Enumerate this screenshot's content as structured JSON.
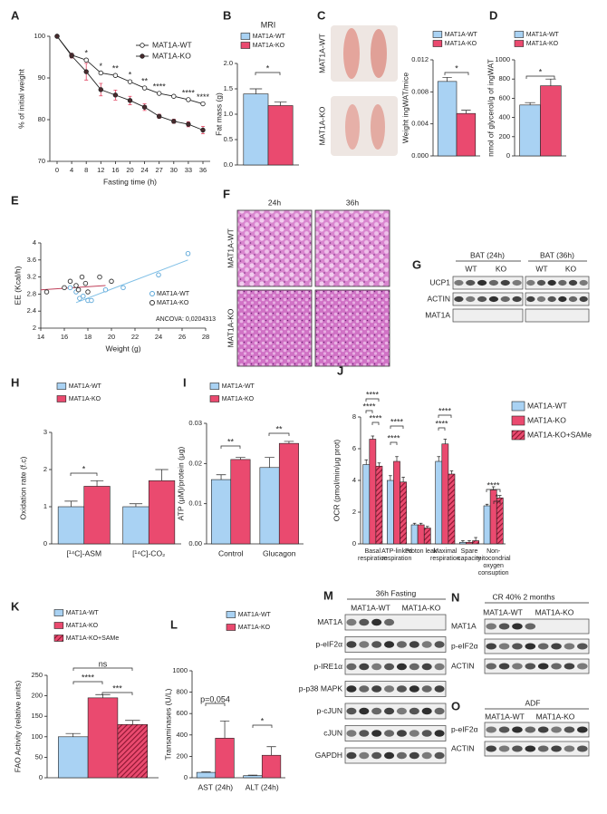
{
  "chart_data": [
    {
      "panel": "A",
      "type": "line",
      "categories": [
        "0",
        "4",
        "8",
        "12",
        "16",
        "20",
        "24",
        "27",
        "30",
        "33",
        "36"
      ],
      "series": [
        {
          "name": "MAT1A-WT",
          "color": "#ffffff",
          "values": [
            100,
            95.5,
            94.3,
            91.2,
            90.6,
            89.1,
            87.6,
            86.3,
            85.6,
            84.8,
            83.8
          ]
        },
        {
          "name": "MAT1A-KO",
          "color": "#4a2b2e",
          "error_color": "#e0405f",
          "values": [
            100,
            95.3,
            91.5,
            87.2,
            85.9,
            84.6,
            83.0,
            80.8,
            79.6,
            78.9,
            77.5
          ],
          "errors": [
            0.3,
            0.5,
            2.0,
            1.5,
            1.2,
            1.0,
            0.8,
            0.5,
            0.5,
            0.6,
            0.9
          ]
        }
      ],
      "ylim": [
        70,
        100
      ],
      "yticks": [
        70,
        80,
        90,
        100
      ],
      "ylabel": "% of initial weight",
      "xlabel": "Fasting time (h)",
      "annotations": [
        "*",
        "*",
        "**",
        "*",
        "**",
        "****",
        "****",
        "****"
      ]
    },
    {
      "panel": "B",
      "type": "bar",
      "title": "MRI",
      "series": [
        {
          "name": "MAT1A-WT",
          "color": "#a9d2f3",
          "values": [
            1.4
          ],
          "errors": [
            0.1
          ]
        },
        {
          "name": "MAT1A-KO",
          "color": "#ea4a6f",
          "values": [
            1.17
          ],
          "errors": [
            0.07
          ]
        }
      ],
      "ylim": [
        0,
        2
      ],
      "yticks": [
        {
          "value": 0,
          "label": "0.0"
        },
        0.5,
        {
          "value": 1,
          "label": "1.0"
        },
        1.5,
        {
          "value": 2,
          "label": "2.0"
        }
      ],
      "ylabel": "Fat mass (g)",
      "annotations": [
        "*"
      ]
    },
    {
      "panel": "C",
      "type": "bar",
      "image_labels": [
        "MAT1A-WT",
        "MAT1A-KO"
      ],
      "series": [
        {
          "name": "MAT1A-WT",
          "color": "#a9d2f3",
          "values": [
            0.0093
          ],
          "errors": [
            0.0005
          ]
        },
        {
          "name": "MAT1A-KO",
          "color": "#ea4a6f",
          "values": [
            0.0053
          ],
          "errors": [
            0.0004
          ]
        }
      ],
      "ylim": [
        0,
        0.012
      ],
      "yticks": [
        {
          "value": 0,
          "label": "0.000"
        },
        0.004,
        0.008,
        0.012
      ],
      "ylabel": "Weight  ingWAT/mice",
      "annotations": [
        "*"
      ]
    },
    {
      "panel": "D",
      "type": "bar",
      "series": [
        {
          "name": "MAT1A-WT",
          "color": "#a9d2f3",
          "values": [
            530
          ],
          "errors": [
            25
          ]
        },
        {
          "name": "MAT1A-KO",
          "color": "#ea4a6f",
          "values": [
            730
          ],
          "errors": [
            70
          ]
        }
      ],
      "ylim": [
        0,
        1000
      ],
      "yticks": [
        0,
        200,
        400,
        600,
        800,
        1000
      ],
      "ylabel": "nmol of glycerol/g of ingWAT",
      "annotations": [
        "*"
      ]
    },
    {
      "panel": "E",
      "type": "scatter",
      "series": [
        {
          "name": "MAT1A-WT",
          "color": "#5aa6d8",
          "x": [
            16.5,
            17,
            17.3,
            17.6,
            18,
            18.3,
            19.5,
            21,
            24,
            26.5
          ],
          "values": [
            2.95,
            2.85,
            2.7,
            2.75,
            2.65,
            2.65,
            2.9,
            2.95,
            3.25,
            3.75
          ]
        },
        {
          "name": "MAT1A-KO",
          "color": "#333333",
          "x": [
            14.5,
            16,
            16.5,
            17,
            17.5,
            17.8,
            18,
            19,
            20,
            17.2
          ],
          "values": [
            2.85,
            2.95,
            3.1,
            3.0,
            3.2,
            3.05,
            2.85,
            3.2,
            3.1,
            2.9
          ]
        }
      ],
      "trend_lines": [
        {
          "color": "#7fbfe6",
          "x": [
            17,
            26.5
          ],
          "values": [
            2.6,
            3.6
          ]
        },
        {
          "color": "#c0405a",
          "x": [
            14,
            19.5
          ],
          "values": [
            2.9,
            3.0
          ]
        }
      ],
      "xlim": [
        14,
        28
      ],
      "xticks": [
        14,
        16,
        18,
        20,
        22,
        24,
        26,
        28
      ],
      "ylim": [
        2,
        4
      ],
      "yticks": [
        2,
        2.4,
        2.8,
        3.2,
        3.6,
        4
      ],
      "xlabel": "Weight (g)",
      "ylabel": "EE (Kcal/h)",
      "annotations": [
        "ANCOVA: 0,0204313"
      ]
    },
    {
      "panel": "H",
      "type": "bar",
      "categories": [
        "[¹⁴C]-ASM",
        "[¹⁴C]-CO₂"
      ],
      "series": [
        {
          "name": "MAT1A-WT",
          "color": "#a9d2f3",
          "values": [
            1.0,
            1.0
          ],
          "errors": [
            0.15,
            0.08
          ]
        },
        {
          "name": "MAT1A-KO",
          "color": "#ea4a6f",
          "values": [
            1.55,
            1.7
          ],
          "errors": [
            0.15,
            0.3
          ]
        }
      ],
      "ylim": [
        0,
        3
      ],
      "yticks": [
        0,
        1,
        2,
        3
      ],
      "ylabel": "Oxidation rate (f.c)",
      "annotations": [
        "*"
      ]
    },
    {
      "panel": "I",
      "type": "bar",
      "categories": [
        "Control",
        "Glucagon"
      ],
      "series": [
        {
          "name": "MAT1A-WT",
          "color": "#a9d2f3",
          "values": [
            0.016,
            0.019
          ],
          "errors": [
            0.0012,
            0.0025
          ]
        },
        {
          "name": "MAT1A-KO",
          "color": "#ea4a6f",
          "values": [
            0.021,
            0.025
          ],
          "errors": [
            0.0005,
            0.0005
          ]
        }
      ],
      "ylim": [
        0,
        0.03
      ],
      "yticks": [
        {
          "value": 0,
          "label": "0.00"
        },
        0.01,
        0.02,
        0.03
      ],
      "ylabel": "ATP (μM)/protein (μg)",
      "annotations": [
        "**",
        "**"
      ]
    },
    {
      "panel": "J",
      "type": "bar",
      "categories": [
        "Basal respiration",
        "ATP-linked respiration",
        "Proton leak",
        "Maximal respiration",
        "Spare capacity",
        "Non-mitocondrial oxygen consuption"
      ],
      "series": [
        {
          "name": "MAT1A-WT",
          "color": "#a9d2f3",
          "values": [
            5.0,
            4.0,
            1.2,
            5.2,
            0.1,
            2.4
          ],
          "errors": [
            0.3,
            0.3,
            0.1,
            0.3,
            0.1,
            0.1
          ]
        },
        {
          "name": "MAT1A-KO",
          "color": "#ea4a6f",
          "values": [
            6.6,
            5.2,
            1.2,
            6.3,
            0.1,
            3.4
          ],
          "errors": [
            0.2,
            0.3,
            0.1,
            0.3,
            0.1,
            0.2
          ]
        },
        {
          "name": "MAT1A-KO+SAMe",
          "color": "#ea4a6f",
          "hatch": "#8a1530",
          "values": [
            4.9,
            3.9,
            1.0,
            4.4,
            0.2,
            2.9
          ],
          "errors": [
            0.2,
            0.3,
            0.1,
            0.2,
            0.2,
            0.15
          ]
        }
      ],
      "ylim": [
        0,
        8
      ],
      "yticks": [
        0,
        2,
        4,
        6,
        8
      ],
      "ylabel": "OCR (pmol/min/μg prot)",
      "annotations": [
        "****",
        "****",
        "****",
        "****",
        "****",
        "****",
        "****",
        "****",
        "*"
      ]
    },
    {
      "panel": "K",
      "type": "bar",
      "series": [
        {
          "name": "MAT1A-WT",
          "color": "#a9d2f3",
          "values": [
            100
          ],
          "errors": [
            8
          ]
        },
        {
          "name": "MAT1A-KO",
          "color": "#ea4a6f",
          "values": [
            195
          ],
          "errors": [
            8
          ]
        },
        {
          "name": "MAT1A-KO+SAMe",
          "color": "#ea4a6f",
          "hatch": "#8a1530",
          "values": [
            130
          ],
          "errors": [
            10
          ]
        }
      ],
      "ylim": [
        0,
        250
      ],
      "yticks": [
        0,
        50,
        100,
        150,
        200,
        250
      ],
      "ylabel": "FAO Activity (relative units)",
      "annotations": [
        "****",
        "***",
        "ns"
      ]
    },
    {
      "panel": "L",
      "type": "bar",
      "categories": [
        "AST (24h)",
        "ALT (24h)"
      ],
      "series": [
        {
          "name": "MAT1A-WT",
          "color": "#a9d2f3",
          "values": [
            50,
            20
          ],
          "errors": [
            5,
            5
          ]
        },
        {
          "name": "MAT1A-KO",
          "color": "#ea4a6f",
          "values": [
            370,
            210
          ],
          "errors": [
            160,
            80
          ]
        }
      ],
      "ylim": [
        0,
        1000
      ],
      "yticks": [
        0,
        200,
        400,
        600,
        800,
        1000
      ],
      "ylabel": "Transaminases (U/L)",
      "annotations": [
        "p=0,054",
        "*"
      ]
    }
  ],
  "histology": {
    "panel": "F",
    "columns": [
      "24h",
      "36h"
    ],
    "rows": [
      "MAT1A-WT",
      "MAT1A-KO"
    ]
  },
  "blots": [
    {
      "panel": "G",
      "groups": [
        "BAT (24h)",
        "BAT (36h)"
      ],
      "lanes": [
        "WT",
        "KO",
        "WT",
        "KO"
      ],
      "rows": [
        "UCP1",
        "ACTIN",
        "MAT1A"
      ]
    },
    {
      "panel": "M",
      "title": "36h Fasting",
      "groups": [
        "MAT1A-WT",
        "MAT1A-KO"
      ],
      "rows": [
        "MAT1A",
        "p-eIF2α",
        "p-IRE1α",
        "p-p38 MAPK",
        "p-cJUN",
        "cJUN",
        "GAPDH"
      ]
    },
    {
      "panel": "N",
      "title": "CR 40% 2 months",
      "groups": [
        "MAT1A-WT",
        "MAT1A-KO"
      ],
      "rows": [
        "MAT1A",
        "p-eIF2α",
        "ACTIN"
      ]
    },
    {
      "panel": "O",
      "title": "ADF",
      "groups": [
        "MAT1A-WT",
        "MAT1A-KO"
      ],
      "rows": [
        "p-eIF2α",
        "ACTIN"
      ]
    }
  ]
}
